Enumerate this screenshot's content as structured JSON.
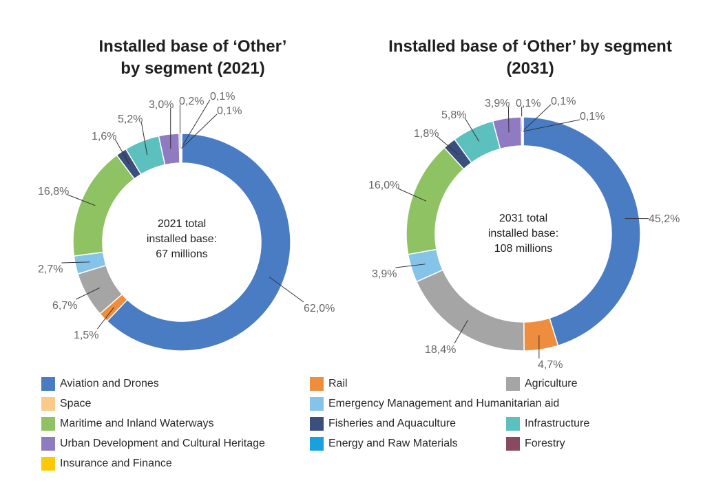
{
  "chart_data": [
    {
      "type": "donut",
      "title": "Installed base of ‘Other’ by segment (2021)",
      "title_lines": [
        "Installed base of ‘Other’",
        "by segment (2021)"
      ],
      "center_text": [
        "2021 total",
        "installed base:",
        "67 millions"
      ],
      "slices": [
        {
          "segment": "Aviation and Drones",
          "value": 62.0,
          "label": "62,0%"
        },
        {
          "segment": "Rail",
          "value": 1.5,
          "label": "1,5%"
        },
        {
          "segment": "Agriculture",
          "value": 6.7,
          "label": "6,7%"
        },
        {
          "segment": "Emergency Management and Humanitarian aid",
          "value": 2.7,
          "label": "2,7%"
        },
        {
          "segment": "Maritime and Inland Waterways",
          "value": 16.8,
          "label": "16,8%"
        },
        {
          "segment": "Fisheries and Aquaculture",
          "value": 1.6,
          "label": "1,6%"
        },
        {
          "segment": "Infrastructure",
          "value": 5.2,
          "label": "5,2%"
        },
        {
          "segment": "Urban Development and Cultural Heritage",
          "value": 3.0,
          "label": "3,0%"
        },
        {
          "segment": "Energy and Raw Materials",
          "value": 0.2,
          "label": "0,2%"
        },
        {
          "segment": "Forestry",
          "value": 0.1,
          "label": "0,1%"
        },
        {
          "segment": "Insurance and Finance",
          "value": 0.1,
          "label": "0,1%"
        }
      ]
    },
    {
      "type": "donut",
      "title": "Installed base of ‘Other’ by segment (2031)",
      "title_lines": [
        "Installed base of ‘Other’ by segment",
        "(2031)"
      ],
      "center_text": [
        "2031 total",
        "installed base:",
        "108 millions"
      ],
      "slices": [
        {
          "segment": "Aviation and Drones",
          "value": 45.2,
          "label": "45,2%"
        },
        {
          "segment": "Rail",
          "value": 4.7,
          "label": "4,7%"
        },
        {
          "segment": "Agriculture",
          "value": 18.4,
          "label": "18,4%"
        },
        {
          "segment": "Emergency Management and Humanitarian aid",
          "value": 3.9,
          "label": "3,9%"
        },
        {
          "segment": "Maritime and Inland Waterways",
          "value": 16.0,
          "label": "16,0%"
        },
        {
          "segment": "Fisheries and Aquaculture",
          "value": 1.8,
          "label": "1,8%"
        },
        {
          "segment": "Infrastructure",
          "value": 5.8,
          "label": "5,8%"
        },
        {
          "segment": "Urban Development and Cultural Heritage",
          "value": 3.9,
          "label": "3,9%"
        },
        {
          "segment": "Energy and Raw Materials",
          "value": 0.1,
          "label": "0,1%"
        },
        {
          "segment": "Forestry",
          "value": 0.1,
          "label": "0,1%"
        },
        {
          "segment": "Insurance and Finance",
          "value": 0.1,
          "label": "0,1%"
        }
      ]
    }
  ],
  "legend": [
    {
      "label": "Aviation and Drones",
      "color": "#4a7cc4"
    },
    {
      "label": "Rail",
      "color": "#ee8d3d"
    },
    {
      "label": "Agriculture",
      "color": "#a5a5a5"
    },
    {
      "label": "Space",
      "color": "#fbc98a"
    },
    {
      "label": "Emergency Management and Humanitarian aid",
      "color": "#86c3e8"
    },
    {
      "label": "Maritime and Inland Waterways",
      "color": "#8ec263"
    },
    {
      "label": "Fisheries and Aquaculture",
      "color": "#3a4f7e"
    },
    {
      "label": "Infrastructure",
      "color": "#5bc0be"
    },
    {
      "label": "Urban Development and Cultural Heritage",
      "color": "#8f7bc1"
    },
    {
      "label": "Energy and Raw Materials",
      "color": "#1ba0de"
    },
    {
      "label": "Forestry",
      "color": "#8a4a5e"
    },
    {
      "label": "Insurance and Finance",
      "color": "#fdc904"
    }
  ]
}
